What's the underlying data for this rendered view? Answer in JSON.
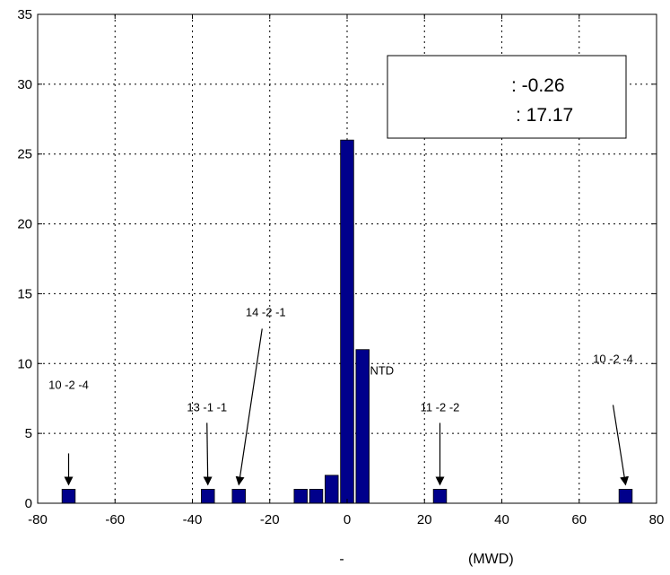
{
  "chart_data": {
    "type": "bar",
    "x": [
      -72,
      -36,
      -28,
      -12,
      -8,
      -4,
      0,
      4,
      24,
      72
    ],
    "values": [
      1,
      1,
      1,
      1,
      1,
      2,
      26,
      11,
      1,
      1
    ],
    "bar_color": "#00008b",
    "xlim": [
      -80,
      80
    ],
    "ylim": [
      0,
      35
    ],
    "xticks": [
      -80,
      -60,
      -40,
      -20,
      0,
      20,
      40,
      60,
      80
    ],
    "yticks": [
      0,
      5,
      10,
      15,
      20,
      25,
      30,
      35
    ],
    "grid": true,
    "xlabel": "-",
    "xlabel_unit": "(MWD)",
    "stats": [
      ": -0.26",
      ": 17.17"
    ],
    "annotations": [
      {
        "text": "10 -2 -4",
        "x": -72,
        "y": 1,
        "arrow": true
      },
      {
        "text": "13 -1 -1",
        "x": -36,
        "y": 1,
        "arrow": true
      },
      {
        "text": "14 -2 -1",
        "x": -28,
        "y": 1,
        "arrow": true
      },
      {
        "text": "11 -2 -2",
        "x": 24,
        "y": 1,
        "arrow": true
      },
      {
        "text": "10 -2 -4",
        "x": 72,
        "y": 1,
        "arrow": true
      },
      {
        "text": "NTD",
        "x": 9,
        "y": 9.2,
        "arrow": false
      }
    ]
  }
}
